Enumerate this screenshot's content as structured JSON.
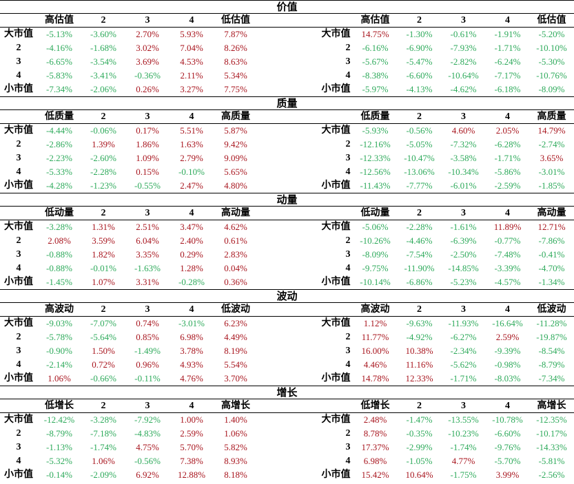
{
  "colors": {
    "positive": "#a8151e",
    "negative": "#2eaa5b"
  },
  "sections": [
    {
      "title": "价值",
      "left": {
        "headers": [
          "高估值",
          "2",
          "3",
          "4",
          "低估值"
        ],
        "rows": [
          {
            "label": "大市值",
            "values": [
              "-5.13%",
              "-3.60%",
              "2.70%",
              "5.93%",
              "7.87%"
            ]
          },
          {
            "label": "2",
            "values": [
              "-4.16%",
              "-1.68%",
              "3.02%",
              "7.04%",
              "8.26%"
            ]
          },
          {
            "label": "3",
            "values": [
              "-6.65%",
              "-3.54%",
              "3.69%",
              "4.53%",
              "8.63%"
            ]
          },
          {
            "label": "4",
            "values": [
              "-5.83%",
              "-3.41%",
              "-0.36%",
              "2.11%",
              "5.34%"
            ]
          },
          {
            "label": "小市值",
            "values": [
              "-7.34%",
              "-2.06%",
              "0.26%",
              "3.27%",
              "7.75%"
            ]
          }
        ]
      },
      "right": {
        "headers": [
          "高估值",
          "2",
          "3",
          "4",
          "低估值"
        ],
        "rows": [
          {
            "label": "大市值",
            "values": [
              "14.75%",
              "-1.30%",
              "-0.61%",
              "-1.91%",
              "-5.20%"
            ]
          },
          {
            "label": "2",
            "values": [
              "-6.16%",
              "-6.90%",
              "-7.93%",
              "-1.71%",
              "-10.10%"
            ]
          },
          {
            "label": "3",
            "values": [
              "-5.67%",
              "-5.47%",
              "-2.82%",
              "-6.24%",
              "-5.30%"
            ]
          },
          {
            "label": "4",
            "values": [
              "-8.38%",
              "-6.60%",
              "-10.64%",
              "-7.17%",
              "-10.76%"
            ]
          },
          {
            "label": "小市值",
            "values": [
              "-5.97%",
              "-4.13%",
              "-4.62%",
              "-6.18%",
              "-8.09%"
            ]
          }
        ]
      }
    },
    {
      "title": "质量",
      "left": {
        "headers": [
          "低质量",
          "2",
          "3",
          "4",
          "高质量"
        ],
        "rows": [
          {
            "label": "大市值",
            "values": [
              "-4.44%",
              "-0.06%",
              "0.17%",
              "5.51%",
              "5.87%"
            ]
          },
          {
            "label": "2",
            "values": [
              "-2.86%",
              "1.39%",
              "1.86%",
              "1.63%",
              "9.42%"
            ]
          },
          {
            "label": "3",
            "values": [
              "-2.23%",
              "-2.60%",
              "1.09%",
              "2.79%",
              "9.09%"
            ]
          },
          {
            "label": "4",
            "values": [
              "-5.33%",
              "-2.28%",
              "0.15%",
              "-0.10%",
              "5.65%"
            ]
          },
          {
            "label": "小市值",
            "values": [
              "-4.28%",
              "-1.23%",
              "-0.55%",
              "2.47%",
              "4.80%"
            ]
          }
        ]
      },
      "right": {
        "headers": [
          "低质量",
          "2",
          "3",
          "4",
          "高质量"
        ],
        "rows": [
          {
            "label": "大市值",
            "values": [
              "-5.93%",
              "-0.56%",
              "4.60%",
              "2.05%",
              "14.79%"
            ]
          },
          {
            "label": "2",
            "values": [
              "-12.16%",
              "-5.05%",
              "-7.32%",
              "-6.28%",
              "-2.74%"
            ]
          },
          {
            "label": "3",
            "values": [
              "-12.33%",
              "-10.47%",
              "-3.58%",
              "-1.71%",
              "3.65%"
            ]
          },
          {
            "label": "4",
            "values": [
              "-12.56%",
              "-13.06%",
              "-10.34%",
              "-5.86%",
              "-3.01%"
            ]
          },
          {
            "label": "小市值",
            "values": [
              "-11.43%",
              "-7.77%",
              "-6.01%",
              "-2.59%",
              "-1.85%"
            ]
          }
        ]
      }
    },
    {
      "title": "动量",
      "left": {
        "headers": [
          "低动量",
          "2",
          "3",
          "4",
          "高动量"
        ],
        "rows": [
          {
            "label": "大市值",
            "values": [
              "-3.28%",
              "1.31%",
              "2.51%",
              "3.47%",
              "4.62%"
            ]
          },
          {
            "label": "2",
            "values": [
              "2.08%",
              "3.59%",
              "6.04%",
              "2.40%",
              "0.61%"
            ]
          },
          {
            "label": "3",
            "values": [
              "-0.88%",
              "1.82%",
              "3.35%",
              "0.29%",
              "2.83%"
            ]
          },
          {
            "label": "4",
            "values": [
              "-0.88%",
              "-0.01%",
              "-1.63%",
              "1.28%",
              "0.04%"
            ]
          },
          {
            "label": "小市值",
            "values": [
              "-1.45%",
              "1.07%",
              "3.31%",
              "-0.28%",
              "0.36%"
            ]
          }
        ]
      },
      "right": {
        "headers": [
          "低动量",
          "2",
          "3",
          "4",
          "高动量"
        ],
        "rows": [
          {
            "label": "大市值",
            "values": [
              "-5.06%",
              "-2.28%",
              "-1.61%",
              "11.89%",
              "12.71%"
            ]
          },
          {
            "label": "2",
            "values": [
              "-10.26%",
              "-4.46%",
              "-6.39%",
              "-0.77%",
              "-7.86%"
            ]
          },
          {
            "label": "3",
            "values": [
              "-8.09%",
              "-7.54%",
              "-2.50%",
              "-7.48%",
              "-0.41%"
            ]
          },
          {
            "label": "4",
            "values": [
              "-9.75%",
              "-11.90%",
              "-14.85%",
              "-3.39%",
              "-4.70%"
            ]
          },
          {
            "label": "小市值",
            "values": [
              "-10.14%",
              "-6.86%",
              "-5.23%",
              "-4.57%",
              "-1.34%"
            ]
          }
        ]
      }
    },
    {
      "title": "波动",
      "left": {
        "headers": [
          "高波动",
          "2",
          "3",
          "4",
          "低波动"
        ],
        "rows": [
          {
            "label": "大市值",
            "values": [
              "-9.03%",
              "-7.07%",
              "0.74%",
              "-3.01%",
              "6.23%"
            ]
          },
          {
            "label": "2",
            "values": [
              "-5.78%",
              "-5.64%",
              "0.85%",
              "6.98%",
              "4.49%"
            ]
          },
          {
            "label": "3",
            "values": [
              "-0.90%",
              "1.50%",
              "-1.49%",
              "3.78%",
              "8.19%"
            ]
          },
          {
            "label": "4",
            "values": [
              "-2.14%",
              "0.72%",
              "0.96%",
              "4.93%",
              "5.54%"
            ]
          },
          {
            "label": "小市值",
            "values": [
              "1.06%",
              "-0.66%",
              "-0.11%",
              "4.76%",
              "3.70%"
            ]
          }
        ]
      },
      "right": {
        "headers": [
          "高波动",
          "2",
          "3",
          "4",
          "低波动"
        ],
        "rows": [
          {
            "label": "大市值",
            "values": [
              "1.12%",
              "-9.63%",
              "-11.93%",
              "-16.64%",
              "-11.28%"
            ]
          },
          {
            "label": "2",
            "values": [
              "11.77%",
              "-4.92%",
              "-6.27%",
              "2.59%",
              "-19.87%"
            ]
          },
          {
            "label": "3",
            "values": [
              "16.00%",
              "10.38%",
              "-2.34%",
              "-9.39%",
              "-8.54%"
            ]
          },
          {
            "label": "4",
            "values": [
              "4.46%",
              "11.16%",
              "-5.62%",
              "-0.98%",
              "-8.79%"
            ]
          },
          {
            "label": "小市值",
            "values": [
              "14.78%",
              "12.33%",
              "-1.71%",
              "-8.03%",
              "-7.34%"
            ]
          }
        ]
      }
    },
    {
      "title": "增长",
      "left": {
        "headers": [
          "低增长",
          "2",
          "3",
          "4",
          "高增长"
        ],
        "rows": [
          {
            "label": "大市值",
            "values": [
              "-12.42%",
              "-3.28%",
              "-7.92%",
              "1.00%",
              "1.40%"
            ]
          },
          {
            "label": "2",
            "values": [
              "-8.79%",
              "-7.18%",
              "-4.83%",
              "2.59%",
              "1.06%"
            ]
          },
          {
            "label": "3",
            "values": [
              "-1.13%",
              "-1.74%",
              "4.75%",
              "5.70%",
              "5.82%"
            ]
          },
          {
            "label": "4",
            "values": [
              "-5.32%",
              "1.06%",
              "-0.56%",
              "7.38%",
              "8.93%"
            ]
          },
          {
            "label": "小市值",
            "values": [
              "-0.14%",
              "-2.09%",
              "6.92%",
              "12.88%",
              "8.18%"
            ]
          }
        ]
      },
      "right": {
        "headers": [
          "低增长",
          "2",
          "3",
          "4",
          "高增长"
        ],
        "rows": [
          {
            "label": "大市值",
            "values": [
              "2.48%",
              "-1.47%",
              "-13.55%",
              "-10.78%",
              "-12.35%"
            ]
          },
          {
            "label": "2",
            "values": [
              "8.78%",
              "-0.35%",
              "-10.23%",
              "-6.60%",
              "-10.17%"
            ]
          },
          {
            "label": "3",
            "values": [
              "17.37%",
              "-2.99%",
              "-1.74%",
              "-9.76%",
              "-14.33%"
            ]
          },
          {
            "label": "4",
            "values": [
              "6.98%",
              "-1.05%",
              "4.77%",
              "-5.70%",
              "-5.81%"
            ]
          },
          {
            "label": "小市值",
            "values": [
              "15.42%",
              "10.64%",
              "-1.75%",
              "3.99%",
              "-2.56%"
            ]
          }
        ]
      }
    }
  ]
}
